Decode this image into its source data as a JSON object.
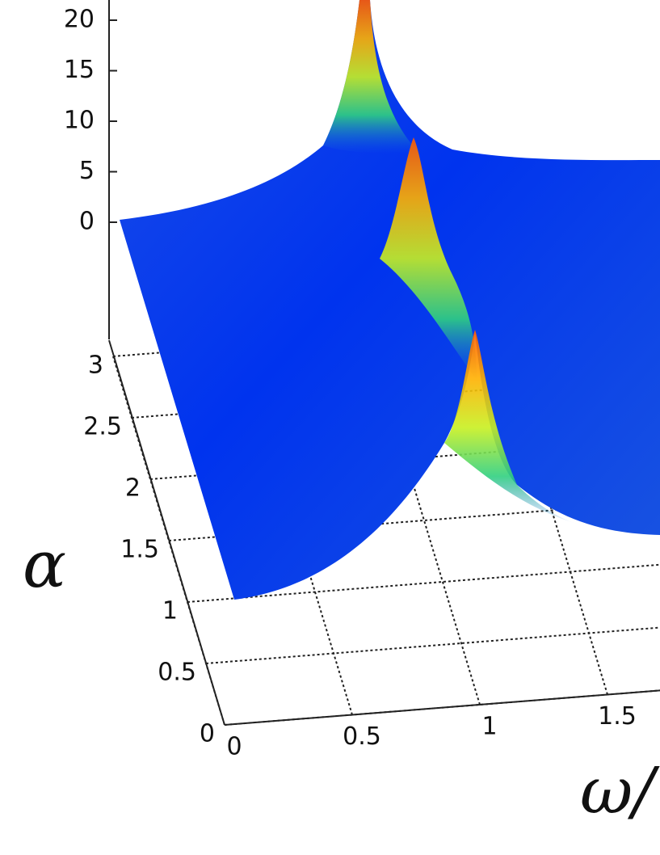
{
  "chart_data": {
    "type": "surface3d",
    "zticks": [
      0,
      5,
      10,
      15,
      20
    ],
    "yticks": [
      0,
      0.5,
      1,
      1.5,
      2,
      2.5,
      3
    ],
    "xticks": [
      0,
      0.5,
      1,
      1.5
    ],
    "ylabel": "α",
    "xlabel": "ω/"
  }
}
